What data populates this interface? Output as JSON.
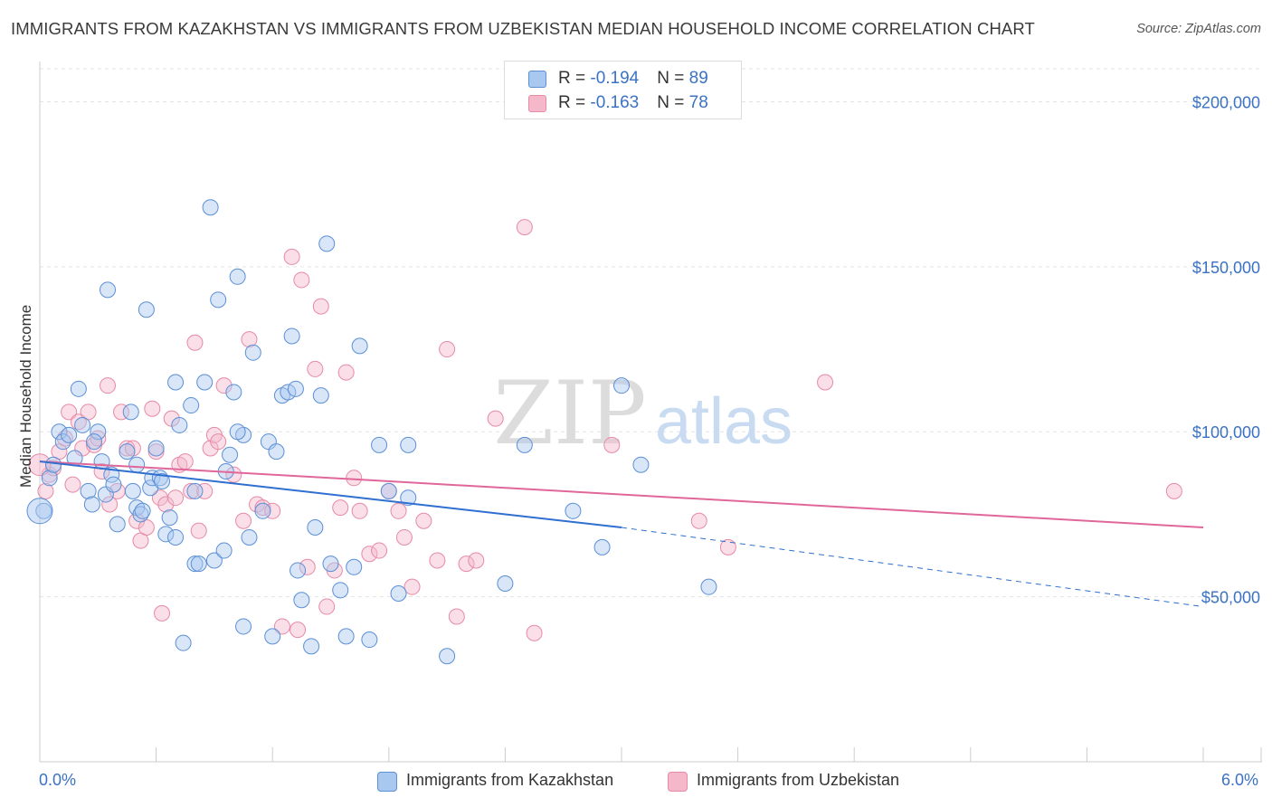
{
  "title": "IMMIGRANTS FROM KAZAKHSTAN VS IMMIGRANTS FROM UZBEKISTAN MEDIAN HOUSEHOLD INCOME CORRELATION CHART",
  "source": "Source: ZipAtlas.com",
  "watermark": {
    "zip": "ZIP",
    "atlas": "atlas"
  },
  "legend_top": {
    "rows": [
      {
        "r_label": "R = ",
        "r_value": "-0.194",
        "n_label": "N = ",
        "n_value": "89"
      },
      {
        "r_label": "R = ",
        "r_value": "-0.163",
        "n_label": "N = ",
        "n_value": "78"
      }
    ]
  },
  "colors": {
    "series_a_fill": "#a9c8ef",
    "series_a_stroke": "#5b8fd6",
    "series_a_line": "#2f6fd0",
    "series_b_fill": "#f5b8cb",
    "series_b_stroke": "#e68aa6",
    "series_b_line": "#e0679a",
    "axis_label": "#3a72c4",
    "grid": "#e3e3e3"
  },
  "chart_data": {
    "type": "scatter",
    "title": "IMMIGRANTS FROM KAZAKHSTAN VS IMMIGRANTS FROM UZBEKISTAN MEDIAN HOUSEHOLD INCOME CORRELATION CHART",
    "xlabel": "",
    "ylabel": "Median Household Income",
    "xlim": [
      0,
      6
    ],
    "ylim": [
      0,
      210000
    ],
    "x_ticks": [
      "0.0%",
      "6.0%"
    ],
    "y_ticks": [
      {
        "value": 50000,
        "label": "$50,000"
      },
      {
        "value": 100000,
        "label": "$100,000"
      },
      {
        "value": 150000,
        "label": "$150,000"
      },
      {
        "value": 200000,
        "label": "$200,000"
      }
    ],
    "grid": true,
    "legend_position": "bottom",
    "series": [
      {
        "name": "Immigrants from Kazakhstan",
        "r": -0.194,
        "n": 89,
        "trend": {
          "x0": 0,
          "y0": 91000,
          "x1": 3.0,
          "y1": 71000,
          "dash_x1": 6.0,
          "dash_y1": 47000
        },
        "points": [
          [
            0.02,
            76000
          ],
          [
            0.05,
            86000
          ],
          [
            0.07,
            90000
          ],
          [
            0.1,
            100000
          ],
          [
            0.12,
            97000
          ],
          [
            0.15,
            99000
          ],
          [
            0.18,
            92000
          ],
          [
            0.2,
            113000
          ],
          [
            0.22,
            102000
          ],
          [
            0.25,
            82000
          ],
          [
            0.27,
            78000
          ],
          [
            0.3,
            100000
          ],
          [
            0.32,
            91000
          ],
          [
            0.34,
            81000
          ],
          [
            0.37,
            87000
          ],
          [
            0.38,
            84000
          ],
          [
            0.35,
            143000
          ],
          [
            0.45,
            94000
          ],
          [
            0.47,
            106000
          ],
          [
            0.5,
            77000
          ],
          [
            0.52,
            75000
          ],
          [
            0.53,
            76000
          ],
          [
            0.5,
            90000
          ],
          [
            0.48,
            82000
          ],
          [
            0.55,
            137000
          ],
          [
            0.57,
            83000
          ],
          [
            0.6,
            95000
          ],
          [
            0.58,
            86000
          ],
          [
            0.62,
            86000
          ],
          [
            0.63,
            85000
          ],
          [
            0.65,
            69000
          ],
          [
            0.67,
            74000
          ],
          [
            0.7,
            68000
          ],
          [
            0.7,
            115000
          ],
          [
            0.72,
            102000
          ],
          [
            0.74,
            36000
          ],
          [
            0.78,
            108000
          ],
          [
            0.8,
            82000
          ],
          [
            0.8,
            60000
          ],
          [
            0.82,
            60000
          ],
          [
            0.85,
            115000
          ],
          [
            0.88,
            168000
          ],
          [
            0.9,
            61000
          ],
          [
            0.92,
            140000
          ],
          [
            0.95,
            64000
          ],
          [
            0.96,
            88000
          ],
          [
            0.98,
            93000
          ],
          [
            1.0,
            112000
          ],
          [
            1.02,
            147000
          ],
          [
            1.05,
            41000
          ],
          [
            1.05,
            99000
          ],
          [
            1.08,
            68000
          ],
          [
            1.1,
            124000
          ],
          [
            1.15,
            76000
          ],
          [
            1.18,
            97000
          ],
          [
            1.2,
            38000
          ],
          [
            1.22,
            94000
          ],
          [
            1.25,
            111000
          ],
          [
            1.28,
            112000
          ],
          [
            1.3,
            129000
          ],
          [
            1.32,
            113000
          ],
          [
            1.33,
            58000
          ],
          [
            1.35,
            49000
          ],
          [
            1.4,
            35000
          ],
          [
            1.42,
            71000
          ],
          [
            1.45,
            111000
          ],
          [
            1.48,
            157000
          ],
          [
            1.5,
            60000
          ],
          [
            1.55,
            52000
          ],
          [
            1.58,
            38000
          ],
          [
            1.62,
            59000
          ],
          [
            1.65,
            126000
          ],
          [
            1.7,
            37000
          ],
          [
            1.75,
            96000
          ],
          [
            1.8,
            82000
          ],
          [
            1.85,
            51000
          ],
          [
            1.9,
            96000
          ],
          [
            2.1,
            32000
          ],
          [
            2.4,
            54000
          ],
          [
            2.5,
            96000
          ],
          [
            2.75,
            76000
          ],
          [
            2.9,
            65000
          ],
          [
            3.0,
            114000
          ],
          [
            3.1,
            90000
          ],
          [
            3.45,
            53000
          ],
          [
            1.02,
            100000
          ],
          [
            0.28,
            97000
          ],
          [
            0.4,
            72000
          ],
          [
            1.9,
            80000
          ]
        ]
      },
      {
        "name": "Immigrants from Uzbekistan",
        "r": -0.163,
        "n": 78,
        "trend": {
          "x0": 0,
          "y0": 91000,
          "x1": 6.0,
          "y1": 71000
        },
        "points": [
          [
            0.03,
            82000
          ],
          [
            0.05,
            87000
          ],
          [
            0.07,
            89000
          ],
          [
            0.1,
            94000
          ],
          [
            0.13,
            98000
          ],
          [
            0.15,
            106000
          ],
          [
            0.17,
            84000
          ],
          [
            0.2,
            103000
          ],
          [
            0.22,
            95000
          ],
          [
            0.25,
            106000
          ],
          [
            0.28,
            96000
          ],
          [
            0.3,
            98000
          ],
          [
            0.32,
            88000
          ],
          [
            0.35,
            114000
          ],
          [
            0.36,
            78000
          ],
          [
            0.4,
            82000
          ],
          [
            0.42,
            106000
          ],
          [
            0.45,
            95000
          ],
          [
            0.48,
            95000
          ],
          [
            0.5,
            73000
          ],
          [
            0.52,
            67000
          ],
          [
            0.55,
            71000
          ],
          [
            0.58,
            107000
          ],
          [
            0.6,
            94000
          ],
          [
            0.62,
            80000
          ],
          [
            0.63,
            45000
          ],
          [
            0.65,
            78000
          ],
          [
            0.68,
            104000
          ],
          [
            0.7,
            80000
          ],
          [
            0.72,
            90000
          ],
          [
            0.75,
            91000
          ],
          [
            0.78,
            82000
          ],
          [
            0.8,
            127000
          ],
          [
            0.82,
            70000
          ],
          [
            0.85,
            82000
          ],
          [
            0.88,
            95000
          ],
          [
            0.9,
            99000
          ],
          [
            0.92,
            97000
          ],
          [
            0.95,
            114000
          ],
          [
            1.0,
            87000
          ],
          [
            1.05,
            73000
          ],
          [
            1.08,
            128000
          ],
          [
            1.12,
            78000
          ],
          [
            1.15,
            77000
          ],
          [
            1.2,
            76000
          ],
          [
            1.25,
            41000
          ],
          [
            1.3,
            153000
          ],
          [
            1.33,
            40000
          ],
          [
            1.35,
            146000
          ],
          [
            1.38,
            59000
          ],
          [
            1.42,
            119000
          ],
          [
            1.45,
            138000
          ],
          [
            1.48,
            47000
          ],
          [
            1.52,
            58000
          ],
          [
            1.55,
            77000
          ],
          [
            1.58,
            118000
          ],
          [
            1.62,
            86000
          ],
          [
            1.65,
            76000
          ],
          [
            1.7,
            63000
          ],
          [
            1.75,
            64000
          ],
          [
            1.8,
            82000
          ],
          [
            1.85,
            76000
          ],
          [
            1.88,
            68000
          ],
          [
            1.92,
            53000
          ],
          [
            1.98,
            73000
          ],
          [
            2.05,
            61000
          ],
          [
            2.1,
            125000
          ],
          [
            2.15,
            44000
          ],
          [
            2.2,
            60000
          ],
          [
            2.25,
            61000
          ],
          [
            2.35,
            104000
          ],
          [
            2.5,
            162000
          ],
          [
            2.55,
            39000
          ],
          [
            2.95,
            96000
          ],
          [
            3.4,
            73000
          ],
          [
            3.55,
            65000
          ],
          [
            4.05,
            115000
          ],
          [
            5.85,
            82000
          ]
        ]
      }
    ]
  },
  "bottom_legend": {
    "items": [
      {
        "label": "Immigrants from Kazakhstan"
      },
      {
        "label": "Immigrants from Uzbekistan"
      }
    ]
  },
  "x_axis": {
    "min_label": "0.0%",
    "max_label": "6.0%"
  },
  "y_axis": {
    "title": "Median Household Income"
  }
}
